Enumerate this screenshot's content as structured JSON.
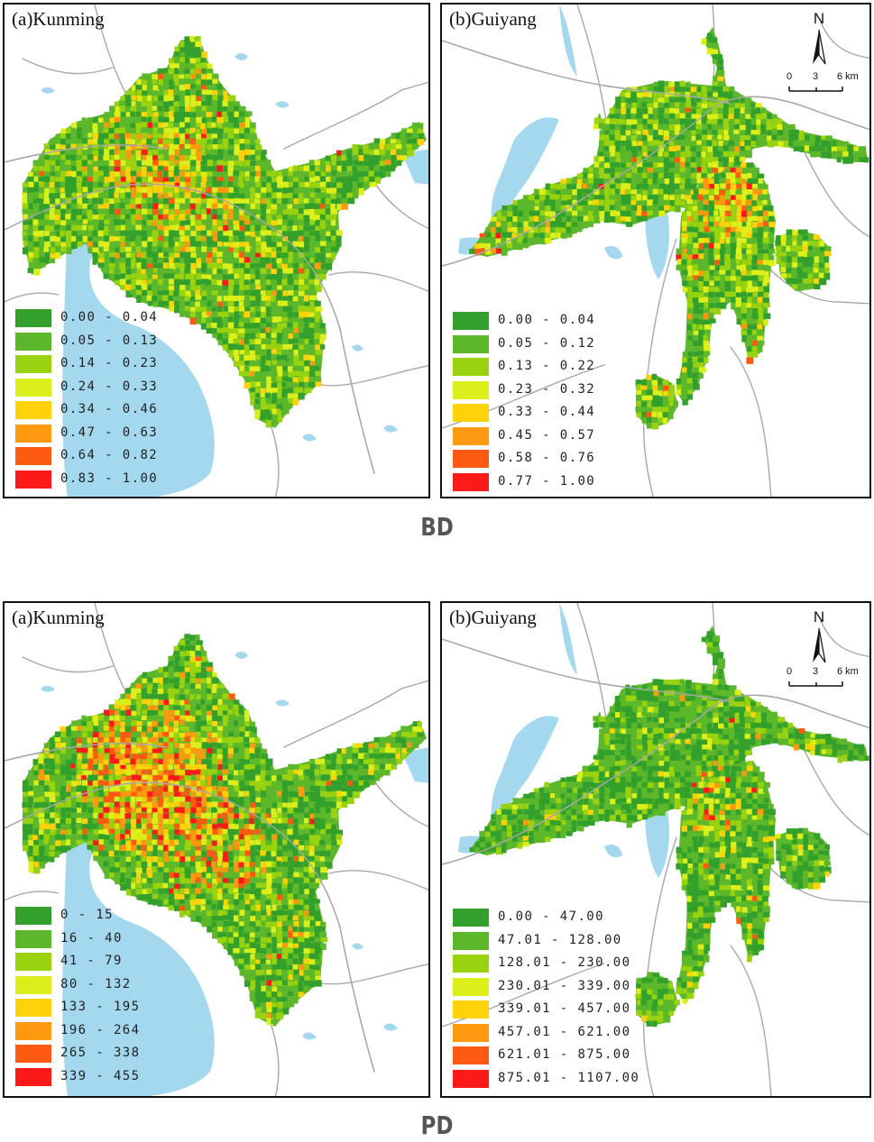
{
  "panels": {
    "bd_kunming": {
      "title": "(a)Kunming",
      "legend": [
        "0.00 - 0.04",
        "0.05 - 0.13",
        "0.14 - 0.23",
        "0.24 - 0.33",
        "0.34 - 0.46",
        "0.47 - 0.63",
        "0.64 - 0.82",
        "0.83 - 1.00"
      ]
    },
    "bd_guiyang": {
      "title": "(b)Guiyang",
      "legend": [
        "0.00 - 0.04",
        "0.05 - 0.12",
        "0.13 - 0.22",
        "0.23 - 0.32",
        "0.33 - 0.44",
        "0.45 - 0.57",
        "0.58 - 0.76",
        "0.77 - 1.00"
      ]
    },
    "pd_kunming": {
      "title": "(a)Kunming",
      "legend": [
        "0 - 15",
        "16 - 40",
        "41 - 79",
        "80 - 132",
        "133 - 195",
        "196 - 264",
        "265 - 338",
        "339 - 455"
      ]
    },
    "pd_guiyang": {
      "title": "(b)Guiyang",
      "legend": [
        "0.00 - 47.00",
        "47.01 - 128.00",
        "128.01 - 230.00",
        "230.01 - 339.00",
        "339.01 - 457.00",
        "457.01 - 621.00",
        "621.01 - 875.00",
        "875.01 - 1107.00"
      ]
    }
  },
  "legend_colors": [
    "#33a02c",
    "#5cb82a",
    "#99d30f",
    "#ddef1a",
    "#ffd20a",
    "#ff9a10",
    "#ff5a12",
    "#ff1a1a"
  ],
  "water_color": "#a4d8ef",
  "road_color": "#a8a8a8",
  "north_arrow": {
    "label": "N",
    "scale": [
      "0",
      "3",
      "6 km"
    ]
  },
  "section_labels": {
    "top": "BD",
    "bottom": "PD"
  }
}
